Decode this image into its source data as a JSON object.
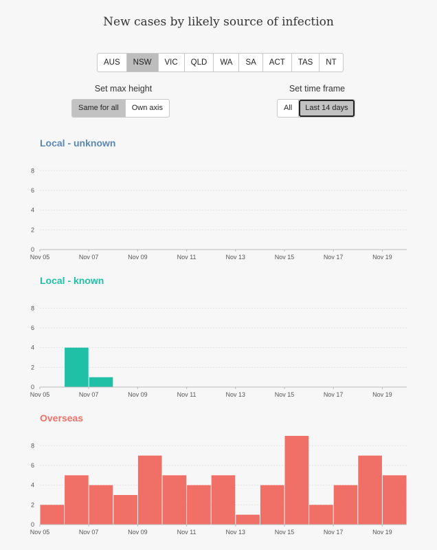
{
  "title": "New cases by likely source of infection",
  "states": [
    {
      "label": "AUS",
      "active": false
    },
    {
      "label": "NSW",
      "active": true
    },
    {
      "label": "VIC",
      "active": false
    },
    {
      "label": "QLD",
      "active": false
    },
    {
      "label": "WA",
      "active": false
    },
    {
      "label": "SA",
      "active": false
    },
    {
      "label": "ACT",
      "active": false
    },
    {
      "label": "TAS",
      "active": false
    },
    {
      "label": "NT",
      "active": false
    }
  ],
  "max_height": {
    "label": "Set max height",
    "options": [
      {
        "label": "Same for all",
        "active": true
      },
      {
        "label": "Own axis",
        "active": false
      }
    ]
  },
  "time_frame": {
    "label": "Set time frame",
    "options": [
      {
        "label": "All",
        "active": false
      },
      {
        "label": "Last 14 days",
        "active": true
      }
    ]
  },
  "chart_data": [
    {
      "type": "bar",
      "title": "Local - unknown",
      "color": "#5b87b5",
      "categories": [
        "Nov 05",
        "Nov 06",
        "Nov 07",
        "Nov 08",
        "Nov 09",
        "Nov 10",
        "Nov 11",
        "Nov 12",
        "Nov 13",
        "Nov 14",
        "Nov 15",
        "Nov 16",
        "Nov 17",
        "Nov 18",
        "Nov 19"
      ],
      "values": [
        0,
        0,
        0,
        0,
        0,
        0,
        0,
        0,
        0,
        0,
        0,
        0,
        0,
        0,
        0
      ],
      "xticks": [
        "Nov 05",
        "Nov 07",
        "Nov 09",
        "Nov 11",
        "Nov 13",
        "Nov 15",
        "Nov 17",
        "Nov 19"
      ],
      "yticks": [
        0,
        2,
        4,
        6,
        8
      ],
      "ylim": [
        0,
        9
      ]
    },
    {
      "type": "bar",
      "title": "Local - known",
      "color": "#20c0a6",
      "categories": [
        "Nov 05",
        "Nov 06",
        "Nov 07",
        "Nov 08",
        "Nov 09",
        "Nov 10",
        "Nov 11",
        "Nov 12",
        "Nov 13",
        "Nov 14",
        "Nov 15",
        "Nov 16",
        "Nov 17",
        "Nov 18",
        "Nov 19"
      ],
      "values": [
        0,
        4,
        1,
        0,
        0,
        0,
        0,
        0,
        0,
        0,
        0,
        0,
        0,
        0,
        0
      ],
      "xticks": [
        "Nov 05",
        "Nov 07",
        "Nov 09",
        "Nov 11",
        "Nov 13",
        "Nov 15",
        "Nov 17",
        "Nov 19"
      ],
      "yticks": [
        0,
        2,
        4,
        6,
        8
      ],
      "ylim": [
        0,
        9
      ]
    },
    {
      "type": "bar",
      "title": "Overseas",
      "color": "#f07068",
      "categories": [
        "Nov 05",
        "Nov 06",
        "Nov 07",
        "Nov 08",
        "Nov 09",
        "Nov 10",
        "Nov 11",
        "Nov 12",
        "Nov 13",
        "Nov 14",
        "Nov 15",
        "Nov 16",
        "Nov 17",
        "Nov 18",
        "Nov 19"
      ],
      "values": [
        2,
        5,
        4,
        3,
        7,
        5,
        4,
        5,
        1,
        4,
        9,
        2,
        4,
        7,
        5
      ],
      "xticks": [
        "Nov 05",
        "Nov 07",
        "Nov 09",
        "Nov 11",
        "Nov 13",
        "Nov 15",
        "Nov 17",
        "Nov 19"
      ],
      "yticks": [
        0,
        2,
        4,
        6,
        8
      ],
      "ylim": [
        0,
        9
      ]
    }
  ]
}
